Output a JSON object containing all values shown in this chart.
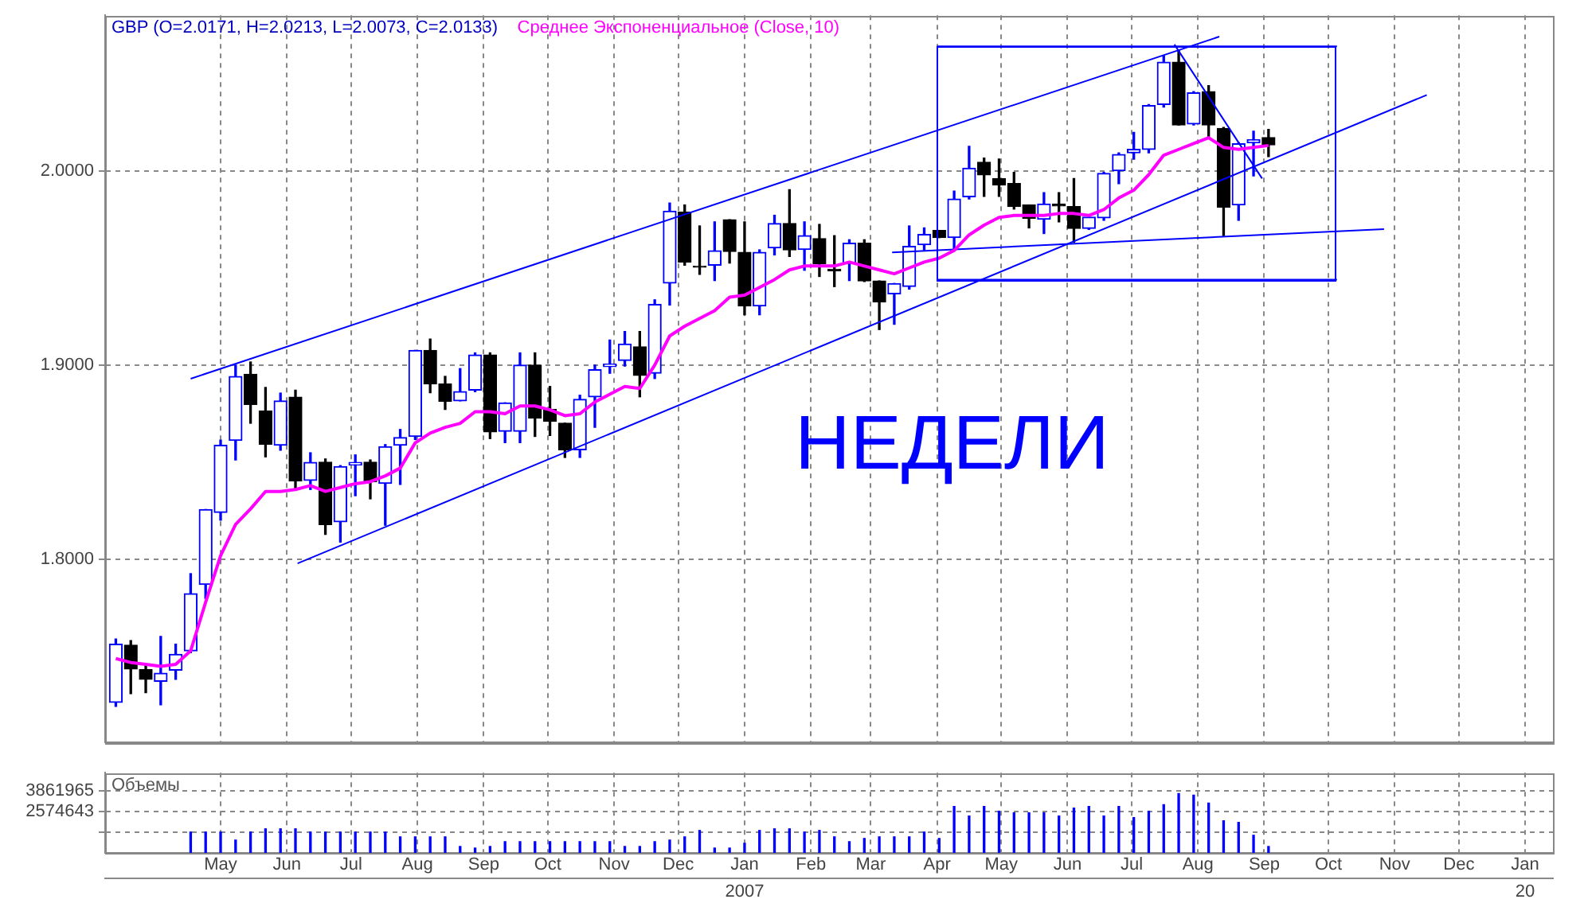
{
  "chart_data": [
    {
      "type": "candlestick",
      "title": "GBP (O=2.0171, H=2.0213, L=2.0073, C=2.0133)",
      "x": [
        "2006-03-13",
        "2006-03-20",
        "2006-03-27",
        "2006-04-03",
        "2006-04-10",
        "2006-04-17",
        "2006-04-24",
        "2006-05-01",
        "2006-05-08",
        "2006-05-15",
        "2006-05-22",
        "2006-05-29",
        "2006-06-05",
        "2006-06-12",
        "2006-06-19",
        "2006-06-26",
        "2006-07-03",
        "2006-07-10",
        "2006-07-17",
        "2006-07-24",
        "2006-07-31",
        "2006-08-07",
        "2006-08-14",
        "2006-08-21",
        "2006-08-28",
        "2006-09-04",
        "2006-09-11",
        "2006-09-18",
        "2006-09-25",
        "2006-10-02",
        "2006-10-09",
        "2006-10-16",
        "2006-10-23",
        "2006-10-30",
        "2006-11-06",
        "2006-11-13",
        "2006-11-20",
        "2006-11-27",
        "2006-12-04",
        "2006-12-11",
        "2006-12-18",
        "2006-12-25",
        "2007-01-01",
        "2007-01-08",
        "2007-01-15",
        "2007-01-22",
        "2007-01-29",
        "2007-02-05",
        "2007-02-12",
        "2007-02-19",
        "2007-02-26",
        "2007-03-05",
        "2007-03-12",
        "2007-03-19",
        "2007-03-26",
        "2007-04-02",
        "2007-04-09",
        "2007-04-16",
        "2007-04-23",
        "2007-04-30",
        "2007-05-07",
        "2007-05-14",
        "2007-05-21",
        "2007-05-28",
        "2007-06-04",
        "2007-06-11",
        "2007-06-18",
        "2007-06-25",
        "2007-07-02",
        "2007-07-09",
        "2007-07-16",
        "2007-07-23",
        "2007-07-30",
        "2007-08-06",
        "2007-08-13",
        "2007-08-20",
        "2007-08-27",
        "2007-09-03"
      ],
      "ohlc": [
        [
          1.7265,
          1.7591,
          1.7244,
          1.7564
        ],
        [
          1.7559,
          1.7583,
          1.731,
          1.7436
        ],
        [
          1.7433,
          1.7454,
          1.7315,
          1.7383
        ],
        [
          1.7373,
          1.7604,
          1.7252,
          1.7415
        ],
        [
          1.743,
          1.7564,
          1.7383,
          1.7512
        ],
        [
          1.753,
          1.7927,
          1.752,
          1.7824
        ],
        [
          1.7871,
          1.8257,
          1.78,
          1.8257
        ],
        [
          1.8242,
          1.8614,
          1.8202,
          1.8588
        ],
        [
          1.8612,
          1.9,
          1.8512,
          1.8942
        ],
        [
          1.8953,
          1.9016,
          1.8701,
          1.8798
        ],
        [
          1.8764,
          1.8885,
          1.8528,
          1.8593
        ],
        [
          1.8588,
          1.8856,
          1.8562,
          1.8816
        ],
        [
          1.8835,
          1.8871,
          1.8365,
          1.8404
        ],
        [
          1.8407,
          1.8549,
          1.836,
          1.8499
        ],
        [
          1.8501,
          1.8517,
          1.8129,
          1.8179
        ],
        [
          1.8194,
          1.8483,
          1.8089,
          1.8478
        ],
        [
          1.8486,
          1.8538,
          1.8328,
          1.85
        ],
        [
          1.8501,
          1.8512,
          1.8312,
          1.8399
        ],
        [
          1.8391,
          1.8591,
          1.8176,
          1.858
        ],
        [
          1.8588,
          1.8669,
          1.8386,
          1.8627
        ],
        [
          1.8633,
          1.9076,
          1.8617,
          1.9076
        ],
        [
          1.9076,
          1.9134,
          1.8858,
          1.8903
        ],
        [
          1.8903,
          1.8942,
          1.8772,
          1.8814
        ],
        [
          1.8816,
          1.8982,
          1.8816,
          1.8864
        ],
        [
          1.8871,
          1.9063,
          1.8863,
          1.9052
        ],
        [
          1.9052,
          1.9063,
          1.8622,
          1.8656
        ],
        [
          1.8659,
          1.8806,
          1.8601,
          1.8806
        ],
        [
          1.8659,
          1.9063,
          1.8601,
          1.9
        ],
        [
          1.9,
          1.9063,
          1.8633,
          1.8727
        ],
        [
          1.8772,
          1.889,
          1.8638,
          1.8711
        ],
        [
          1.8701,
          1.8701,
          1.8525,
          1.8564
        ],
        [
          1.8564,
          1.8845,
          1.8525,
          1.8824
        ],
        [
          1.8837,
          1.9,
          1.868,
          1.8976
        ],
        [
          1.8992,
          1.9129,
          1.8958,
          1.9005
        ],
        [
          1.9024,
          1.9173,
          1.8995,
          1.9108
        ],
        [
          1.9094,
          1.9173,
          1.8837,
          1.8947
        ],
        [
          1.8958,
          1.9336,
          1.8931,
          1.9312
        ],
        [
          1.9422,
          1.9834,
          1.9309,
          1.9792
        ],
        [
          1.9787,
          1.9824,
          1.9514,
          1.953
        ],
        [
          1.9509,
          1.9716,
          1.9467,
          1.9504
        ],
        [
          1.9514,
          1.9737,
          1.9435,
          1.9588
        ],
        [
          1.9748,
          1.9748,
          1.9525,
          1.9585
        ],
        [
          1.958,
          1.9737,
          1.9259,
          1.9304
        ],
        [
          1.9304,
          1.9593,
          1.9259,
          1.958
        ],
        [
          1.9603,
          1.9771,
          1.9567,
          1.9729
        ],
        [
          1.9729,
          1.9903,
          1.9559,
          1.9593
        ],
        [
          1.9595,
          1.9737,
          1.9488,
          1.9666
        ],
        [
          1.9651,
          1.9724,
          1.9456,
          1.9522
        ],
        [
          1.9493,
          1.9666,
          1.9404,
          1.9485
        ],
        [
          1.9522,
          1.9645,
          1.9435,
          1.9627
        ],
        [
          1.9627,
          1.9645,
          1.943,
          1.9433
        ],
        [
          1.9433,
          1.9433,
          1.9183,
          1.9325
        ],
        [
          1.9367,
          1.942,
          1.921,
          1.942
        ],
        [
          1.9404,
          1.9716,
          1.9391,
          1.9611
        ],
        [
          1.9619,
          1.9706,
          1.9593,
          1.9672
        ],
        [
          1.9693,
          1.9693,
          1.9656,
          1.9656
        ],
        [
          1.9656,
          1.9895,
          1.9593,
          1.9855
        ],
        [
          1.9866,
          2.0126,
          1.9855,
          2.0013
        ],
        [
          2.0044,
          2.0065,
          1.9868,
          1.9979
        ],
        [
          1.996,
          2.006,
          1.9868,
          1.9926
        ],
        [
          1.9934,
          1.9992,
          1.9803,
          1.9816
        ],
        [
          1.9824,
          1.9824,
          1.9706,
          1.9756
        ],
        [
          1.975,
          1.9887,
          1.9677,
          1.9829
        ],
        [
          1.9829,
          1.9887,
          1.9737,
          1.9819
        ],
        [
          1.9816,
          1.996,
          1.9632,
          1.9703
        ],
        [
          1.9703,
          1.9761,
          1.9698,
          1.9761
        ],
        [
          1.9758,
          1.9992,
          1.9745,
          1.9987
        ],
        [
          2.0,
          2.0092,
          1.9934,
          2.0084
        ],
        [
          2.0092,
          2.0197,
          2.006,
          2.011
        ],
        [
          2.011,
          2.0341,
          2.0092,
          2.0336
        ],
        [
          2.0341,
          2.059,
          2.0328,
          2.0559
        ],
        [
          2.0559,
          2.0622,
          2.0236,
          2.0236
        ],
        [
          2.0241,
          2.0407,
          2.0236,
          2.0401
        ],
        [
          2.0407,
          2.0438,
          2.0165,
          2.0236
        ],
        [
          2.0218,
          2.0223,
          1.9666,
          1.9813
        ],
        [
          1.9824,
          2.0144,
          1.9745,
          2.0139
        ],
        [
          2.0144,
          2.0204,
          1.9974,
          2.016
        ],
        [
          2.0171,
          2.0213,
          2.0073,
          2.0133
        ]
      ],
      "series": [
        {
          "name": "Среднее Экспоненциальное (Close, 10)",
          "type": "line",
          "color": "#ff00ff",
          "values": [
            1.749,
            1.747,
            1.746,
            1.745,
            1.746,
            1.753,
            1.778,
            1.802,
            1.818,
            1.826,
            1.835,
            1.835,
            1.836,
            1.838,
            1.835,
            1.837,
            1.839,
            1.84,
            1.843,
            1.847,
            1.86,
            1.865,
            1.868,
            1.87,
            1.876,
            1.876,
            1.875,
            1.879,
            1.879,
            1.877,
            1.874,
            1.875,
            1.881,
            1.885,
            1.889,
            1.888,
            1.9,
            1.915,
            1.92,
            1.924,
            1.928,
            1.935,
            1.936,
            1.94,
            1.944,
            1.949,
            1.951,
            1.951,
            1.951,
            1.953,
            1.951,
            1.949,
            1.947,
            1.95,
            1.953,
            1.955,
            1.959,
            1.967,
            1.972,
            1.976,
            1.977,
            1.977,
            1.977,
            1.978,
            1.978,
            1.977,
            1.98,
            1.986,
            1.99,
            1.998,
            2.008,
            2.011,
            2.014,
            2.017,
            2.012,
            2.011,
            2.012,
            2.013
          ]
        },
        {
          "type": "line",
          "color": "#0000ff",
          "x": [
            "2006-04-17",
            "2007-08-11"
          ],
          "values": [
            1.893,
            2.069
          ]
        },
        {
          "type": "line",
          "color": "#0000ff",
          "x": [
            "2006-06-06",
            "2007-11-16"
          ],
          "values": [
            1.798,
            2.039
          ]
        },
        {
          "type": "line",
          "color": "#0000ff",
          "x": [
            "2007-03-11",
            "2007-10-27"
          ],
          "values": [
            1.958,
            1.97
          ]
        },
        {
          "type": "line",
          "color": "#0000ff",
          "x": [
            "2007-07-21",
            "2007-08-31"
          ],
          "values": [
            2.065,
            1.996
          ]
        },
        {
          "type": "line",
          "color": "#0000ff",
          "x": [
            "2007-04-01",
            "2007-10-05"
          ],
          "values": [
            2.064,
            2.064
          ]
        },
        {
          "type": "line",
          "color": "#0000ff",
          "x": [
            "2007-04-01",
            "2007-10-05"
          ],
          "values": [
            1.944,
            1.944
          ]
        }
      ],
      "annotations": [
        "НЕДЕЛИ"
      ],
      "xlim": [
        "2006-03-08",
        "2008-01-14"
      ],
      "xticks": [
        {
          "value": "2006-05-01",
          "label": null
        },
        {
          "value": "2006-06-01",
          "label": null
        },
        {
          "value": "2006-07-01",
          "label": null
        },
        {
          "value": "2006-08-01",
          "label": null
        },
        {
          "value": "2006-09-01",
          "label": null
        },
        {
          "value": "2006-10-01",
          "label": null
        },
        {
          "value": "2006-11-01",
          "label": null
        },
        {
          "value": "2006-12-01",
          "label": null
        },
        {
          "value": "2007-01-01",
          "label": null
        },
        {
          "value": "2007-02-01",
          "label": null
        },
        {
          "value": "2007-03-01",
          "label": null
        },
        {
          "value": "2007-04-01",
          "label": null
        },
        {
          "value": "2007-05-01",
          "label": null
        },
        {
          "value": "2007-06-01",
          "label": null
        },
        {
          "value": "2007-07-01",
          "label": null
        },
        {
          "value": "2007-08-01",
          "label": null
        },
        {
          "value": "2007-09-01",
          "label": null
        },
        {
          "value": "2007-10-01",
          "label": null
        },
        {
          "value": "2007-11-01",
          "label": null
        },
        {
          "value": "2007-12-01",
          "label": null
        },
        {
          "value": "2008-01-01",
          "label": null
        }
      ],
      "ylim": [
        1.706,
        2.08
      ],
      "yticks": [
        {
          "value": 1.8,
          "label": "1.8000"
        },
        {
          "value": 1.9,
          "label": "1.9000"
        },
        {
          "value": 2.0,
          "label": "2.0000"
        }
      ],
      "grid": true,
      "legend": "top left",
      "tick_labels": "y"
    },
    {
      "type": "bar",
      "title": "Объемы",
      "color": "#0000ff",
      "x": [
        "2006-04-17",
        "2006-04-24",
        "2006-05-01",
        "2006-05-08",
        "2006-05-15",
        "2006-05-22",
        "2006-05-29",
        "2006-06-05",
        "2006-06-12",
        "2006-06-19",
        "2006-06-26",
        "2006-07-03",
        "2006-07-10",
        "2006-07-17",
        "2006-07-24",
        "2006-07-31",
        "2006-08-07",
        "2006-08-14",
        "2006-08-21",
        "2006-08-28",
        "2006-09-04",
        "2006-09-11",
        "2006-09-18",
        "2006-09-25",
        "2006-10-02",
        "2006-10-09",
        "2006-10-16",
        "2006-10-23",
        "2006-10-30",
        "2006-11-06",
        "2006-11-13",
        "2006-11-20",
        "2006-11-27",
        "2006-12-04",
        "2006-12-11",
        "2006-12-18",
        "2006-12-25",
        "2007-01-01",
        "2007-01-08",
        "2007-01-15",
        "2007-01-22",
        "2007-01-29",
        "2007-02-05",
        "2007-02-12",
        "2007-02-19",
        "2007-02-26",
        "2007-03-05",
        "2007-03-12",
        "2007-03-19",
        "2007-03-26",
        "2007-04-02",
        "2007-04-09",
        "2007-04-16",
        "2007-04-23",
        "2007-04-30",
        "2007-05-07",
        "2007-05-14",
        "2007-05-21",
        "2007-05-28",
        "2007-06-04",
        "2007-06-11",
        "2007-06-18",
        "2007-06-25",
        "2007-07-02",
        "2007-07-09",
        "2007-07-16",
        "2007-07-23",
        "2007-07-30",
        "2007-08-06",
        "2007-08-13",
        "2007-08-20",
        "2007-08-27",
        "2007-09-03"
      ],
      "values": [
        1300000,
        1300000,
        1300000,
        800000,
        1300000,
        1500000,
        1500000,
        1500000,
        1300000,
        1300000,
        1300000,
        1300000,
        1300000,
        1300000,
        1000000,
        1000000,
        1000000,
        1000000,
        400000,
        300000,
        400000,
        700000,
        700000,
        700000,
        700000,
        700000,
        700000,
        700000,
        700000,
        400000,
        400000,
        700000,
        800000,
        1000000,
        1400000,
        300000,
        300000,
        600000,
        1400000,
        1500000,
        1500000,
        1300000,
        1400000,
        1000000,
        700000,
        900000,
        1000000,
        1000000,
        1000000,
        1300000,
        900000,
        2900000,
        2300000,
        2900000,
        2600000,
        2500000,
        2500000,
        2500000,
        2300000,
        2800000,
        2900000,
        2300000,
        2900000,
        2200000,
        2600000,
        3000000,
        3700000,
        3600000,
        3100000,
        2000000,
        1900000,
        1100000,
        400000
      ],
      "xlim": [
        "2006-03-08",
        "2008-01-14"
      ],
      "xticks": [
        {
          "value": "2006-05-01",
          "label": "May"
        },
        {
          "value": "2006-06-01",
          "label": "Jun"
        },
        {
          "value": "2006-07-01",
          "label": "Jul"
        },
        {
          "value": "2006-08-01",
          "label": "Aug"
        },
        {
          "value": "2006-09-01",
          "label": "Sep"
        },
        {
          "value": "2006-10-01",
          "label": "Oct"
        },
        {
          "value": "2006-11-01",
          "label": "Nov"
        },
        {
          "value": "2006-12-01",
          "label": "Dec"
        },
        {
          "value": "2007-01-01",
          "label": "Jan"
        },
        {
          "value": "2007-02-01",
          "label": "Feb"
        },
        {
          "value": "2007-03-01",
          "label": "Mar"
        },
        {
          "value": "2007-04-01",
          "label": "Apr"
        },
        {
          "value": "2007-05-01",
          "label": "May"
        },
        {
          "value": "2007-06-01",
          "label": "Jun"
        },
        {
          "value": "2007-07-01",
          "label": "Jul"
        },
        {
          "value": "2007-08-01",
          "label": "Aug"
        },
        {
          "value": "2007-09-01",
          "label": "Sep"
        },
        {
          "value": "2007-10-01",
          "label": "Oct"
        },
        {
          "value": "2007-11-01",
          "label": "Nov"
        },
        {
          "value": "2007-12-01",
          "label": "Dec"
        },
        {
          "value": "2008-01-01",
          "label": "Jan"
        }
      ],
      "x2lim": [
        "2006-03-08",
        "2008-01-14"
      ],
      "x2ticks": [
        {
          "value": "2007-01-01",
          "label": "2007"
        },
        {
          "value": "2008-01-01",
          "label": "20"
        }
      ],
      "ylim": [
        0,
        5000000
      ],
      "yticks": [
        {
          "value": 1287322,
          "label": null
        },
        {
          "value": 2574643,
          "label": "2574643"
        },
        3861965
      ],
      "grid": true
    }
  ]
}
